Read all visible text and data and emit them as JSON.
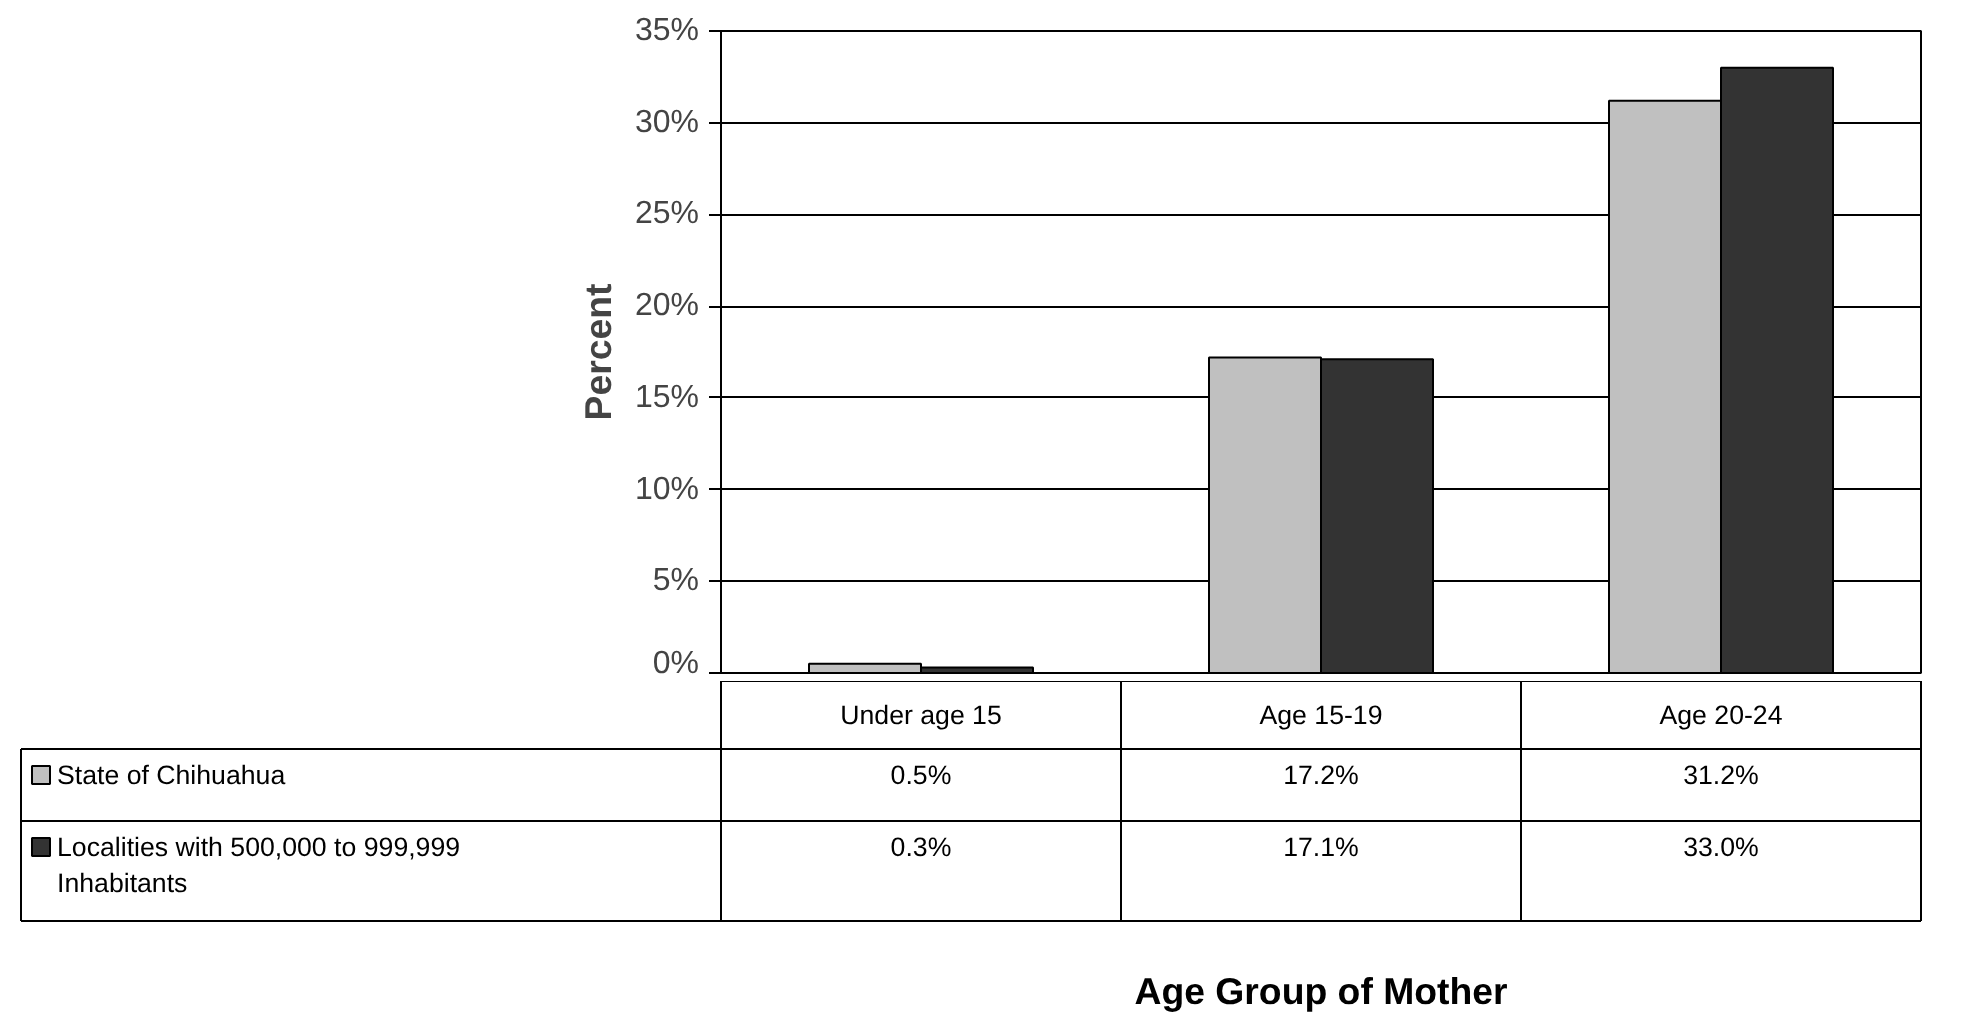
{
  "chart_data": {
    "type": "bar",
    "annotations": [
      "Age Group of Mother"
    ],
    "ylabel": "Percent",
    "categories": [
      "Under age 15",
      "Age 15-19",
      "Age 20-24"
    ],
    "series": [
      {
        "name": "State of Chihuahua",
        "color": "#c0c0c0",
        "values": [
          0.5,
          17.2,
          31.2
        ],
        "value_labels": [
          "0.5%",
          "17.2%",
          "31.2%"
        ]
      },
      {
        "name": "Localities with 500,000 to 999,999 Inhabitants",
        "color": "#333333",
        "values": [
          0.3,
          17.1,
          33.0
        ],
        "value_labels": [
          "0.3%",
          "17.1%",
          "33.0%"
        ]
      }
    ],
    "ylim": [
      0,
      35
    ],
    "yticks": [
      {
        "value": 0,
        "label": "0%"
      },
      {
        "value": 5,
        "label": "5%"
      },
      {
        "value": 10,
        "label": "10%"
      },
      {
        "value": 15,
        "label": "15%"
      },
      {
        "value": 20,
        "label": "20%"
      },
      {
        "value": 25,
        "label": "25%"
      },
      {
        "value": 30,
        "label": "30%"
      },
      {
        "value": 35,
        "label": "35%"
      }
    ],
    "grid": "y",
    "legend": "bottom left",
    "data_labels": true
  }
}
